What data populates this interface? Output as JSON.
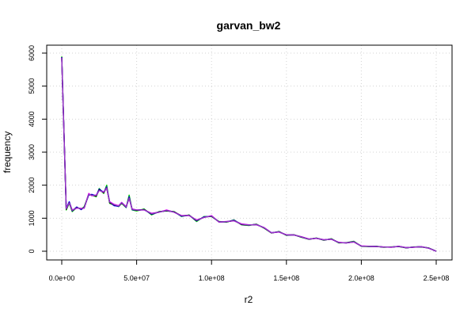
{
  "chart_data": {
    "type": "line",
    "title": "garvan_bw2",
    "xlabel": "r2",
    "ylabel": "frequency",
    "xlim": [
      0,
      250000000
    ],
    "ylim": [
      0,
      6000
    ],
    "grid": true,
    "xticks": [
      0,
      50000000,
      100000000,
      150000000,
      200000000,
      250000000
    ],
    "xtick_labels": [
      "0.0e+00",
      "5.0e+07",
      "1.0e+08",
      "1.5e+08",
      "2.0e+08",
      "2.5e+08"
    ],
    "yticks": [
      0,
      1000,
      2000,
      3000,
      4000,
      5000,
      6000
    ],
    "ytick_labels": [
      "0",
      "1000",
      "2000",
      "3000",
      "4000",
      "5000",
      "6000"
    ],
    "series": [
      {
        "color": "#00cc00",
        "x": [
          0,
          3000000,
          5000000,
          7000000,
          10000000,
          13000000,
          15000000,
          18000000,
          20000000,
          23000000,
          25000000,
          28000000,
          30000000,
          32000000,
          35000000,
          38000000,
          40000000,
          43000000,
          45000000,
          47000000,
          50000000,
          55000000,
          60000000,
          65000000,
          70000000,
          75000000,
          80000000,
          85000000,
          90000000,
          95000000,
          100000000,
          105000000,
          110000000,
          115000000,
          120000000,
          125000000,
          130000000,
          135000000,
          140000000,
          145000000,
          150000000,
          155000000,
          160000000,
          165000000,
          170000000,
          175000000,
          180000000,
          185000000,
          190000000,
          195000000,
          200000000,
          205000000,
          210000000,
          215000000,
          220000000,
          225000000,
          230000000,
          235000000,
          240000000,
          245000000,
          250000000
        ],
        "y": [
          5900,
          1250,
          1450,
          1200,
          1320,
          1280,
          1350,
          1720,
          1700,
          1650,
          1900,
          1750,
          2000,
          1450,
          1400,
          1350,
          1450,
          1320,
          1700,
          1250,
          1220,
          1280,
          1100,
          1200,
          1220,
          1200,
          1050,
          1100,
          900,
          1050,
          1050,
          900,
          880,
          950,
          800,
          780,
          820,
          700,
          550,
          600,
          480,
          500,
          420,
          360,
          400,
          330,
          380,
          250,
          260,
          300,
          150,
          140,
          150,
          120,
          130,
          140,
          100,
          130,
          130,
          100,
          0
        ]
      },
      {
        "color": "#ff00ff",
        "x": [
          0,
          3000000,
          5000000,
          7000000,
          10000000,
          13000000,
          15000000,
          18000000,
          20000000,
          23000000,
          25000000,
          28000000,
          30000000,
          32000000,
          35000000,
          38000000,
          40000000,
          43000000,
          45000000,
          47000000,
          50000000,
          55000000,
          60000000,
          65000000,
          70000000,
          75000000,
          80000000,
          85000000,
          90000000,
          95000000,
          100000000,
          105000000,
          110000000,
          115000000,
          120000000,
          125000000,
          130000000,
          135000000,
          140000000,
          145000000,
          150000000,
          155000000,
          160000000,
          165000000,
          170000000,
          175000000,
          180000000,
          185000000,
          190000000,
          195000000,
          200000000,
          205000000,
          210000000,
          215000000,
          220000000,
          225000000,
          230000000,
          235000000,
          240000000,
          245000000,
          250000000
        ],
        "y": [
          5850,
          1300,
          1480,
          1250,
          1300,
          1300,
          1300,
          1750,
          1680,
          1700,
          1850,
          1800,
          1900,
          1500,
          1420,
          1380,
          1480,
          1350,
          1600,
          1280,
          1250,
          1250,
          1150,
          1180,
          1250,
          1180,
          1080,
          1080,
          950,
          1020,
          1080,
          880,
          900,
          920,
          830,
          800,
          800,
          720,
          560,
          580,
          500,
          490,
          440,
          370,
          390,
          350,
          360,
          270,
          250,
          280,
          160,
          150,
          140,
          130,
          120,
          150,
          110,
          120,
          140,
          90,
          0
        ]
      },
      {
        "color": "#0000ff",
        "x": [
          0,
          3000000,
          5000000,
          7000000,
          10000000,
          13000000,
          15000000,
          18000000,
          20000000,
          23000000,
          25000000,
          28000000,
          30000000,
          32000000,
          35000000,
          38000000,
          40000000,
          43000000,
          45000000,
          47000000,
          50000000,
          55000000,
          60000000,
          65000000,
          70000000,
          75000000,
          80000000,
          85000000,
          90000000,
          95000000,
          100000000,
          105000000,
          110000000,
          115000000,
          120000000,
          125000000,
          130000000,
          135000000,
          140000000,
          145000000,
          150000000,
          155000000,
          160000000,
          165000000,
          170000000,
          175000000,
          180000000,
          185000000,
          190000000,
          195000000,
          200000000,
          205000000,
          210000000,
          215000000,
          220000000,
          225000000,
          230000000,
          235000000,
          240000000,
          245000000,
          250000000
        ],
        "y": [
          5880,
          1280,
          1500,
          1220,
          1340,
          1260,
          1330,
          1700,
          1720,
          1680,
          1880,
          1780,
          1950,
          1480,
          1380,
          1360,
          1470,
          1330,
          1650,
          1260,
          1240,
          1260,
          1120,
          1190,
          1230,
          1190,
          1060,
          1090,
          920,
          1040,
          1060,
          890,
          890,
          940,
          810,
          790,
          810,
          710,
          560,
          590,
          490,
          495,
          430,
          365,
          395,
          340,
          370,
          260,
          255,
          290,
          155,
          145,
          145,
          125,
          125,
          145,
          105,
          125,
          135,
          95,
          0
        ]
      },
      {
        "color": "#000000",
        "x": [
          0,
          3000000,
          5000000,
          7000000,
          10000000,
          13000000,
          15000000,
          18000000,
          20000000,
          23000000,
          25000000,
          28000000,
          30000000,
          32000000,
          35000000,
          38000000,
          40000000,
          43000000,
          45000000,
          47000000,
          50000000,
          55000000,
          60000000,
          65000000,
          70000000,
          75000000,
          80000000,
          85000000,
          90000000,
          95000000,
          100000000,
          105000000,
          110000000,
          115000000,
          120000000,
          125000000,
          130000000,
          135000000,
          140000000,
          145000000,
          150000000,
          155000000,
          160000000,
          165000000,
          170000000,
          175000000,
          180000000,
          185000000,
          190000000,
          195000000,
          200000000,
          205000000,
          210000000,
          215000000,
          220000000,
          225000000,
          230000000,
          235000000,
          240000000,
          245000000,
          250000000
        ],
        "y": [
          5870,
          1270,
          1470,
          1230,
          1320,
          1280,
          1320,
          1720,
          1700,
          1670,
          1860,
          1770,
          1930,
          1470,
          1400,
          1370,
          1460,
          1340,
          1620,
          1270,
          1240,
          1260,
          1130,
          1190,
          1230,
          1190,
          1070,
          1090,
          930,
          1030,
          1060,
          890,
          890,
          930,
          810,
          790,
          810,
          710,
          555,
          590,
          490,
          495,
          430,
          365,
          395,
          340,
          370,
          260,
          255,
          285,
          155,
          145,
          145,
          125,
          125,
          145,
          105,
          125,
          135,
          95,
          0
        ]
      },
      {
        "color": "#9932cc",
        "x": [
          0,
          3000000,
          5000000,
          7000000,
          10000000,
          13000000,
          15000000,
          18000000,
          20000000,
          23000000,
          25000000,
          28000000,
          30000000,
          32000000,
          35000000,
          38000000,
          40000000,
          43000000,
          45000000,
          47000000,
          50000000,
          55000000,
          60000000,
          65000000,
          70000000,
          75000000,
          80000000,
          85000000,
          90000000,
          95000000,
          100000000,
          105000000,
          110000000,
          115000000,
          120000000,
          125000000,
          130000000,
          135000000,
          140000000,
          145000000,
          150000000,
          155000000,
          160000000,
          165000000,
          170000000,
          175000000,
          180000000,
          185000000,
          190000000,
          195000000,
          200000000,
          205000000,
          210000000,
          215000000,
          220000000,
          225000000,
          230000000,
          235000000,
          240000000,
          245000000,
          250000000
        ],
        "y": [
          5860,
          1290,
          1460,
          1240,
          1310,
          1290,
          1310,
          1730,
          1690,
          1690,
          1840,
          1790,
          1920,
          1490,
          1410,
          1370,
          1470,
          1340,
          1610,
          1270,
          1250,
          1250,
          1140,
          1180,
          1240,
          1180,
          1075,
          1085,
          940,
          1025,
          1070,
          885,
          895,
          925,
          820,
          795,
          805,
          715,
          558,
          585,
          495,
          492,
          435,
          368,
          392,
          345,
          365,
          265,
          252,
          282,
          158,
          148,
          142,
          128,
          122,
          148,
          108,
          122,
          138,
          92,
          0
        ]
      }
    ]
  }
}
